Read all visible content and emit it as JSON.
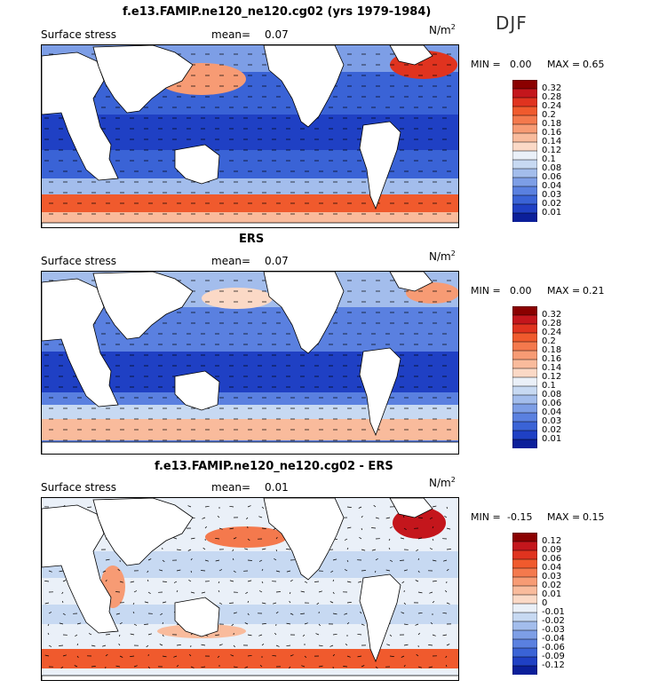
{
  "season": "DJF",
  "panels": [
    {
      "id": "model",
      "title": "f.e13.FAMIP.ne120_ne120.cg02 (yrs 1979-1984)",
      "left_label": "Surface stress",
      "mean_label": "mean=",
      "mean_value": "0.07",
      "units_base": "N/m",
      "units_exp": "2",
      "min_label": "MIN =",
      "min_value": "0.00",
      "max_label": "MAX =",
      "max_value": "0.65"
    },
    {
      "id": "obs",
      "title": "ERS",
      "left_label": "Surface stress",
      "mean_label": "mean=",
      "mean_value": "0.07",
      "units_base": "N/m",
      "units_exp": "2",
      "min_label": "MIN =",
      "min_value": "0.00",
      "max_label": "MAX =",
      "max_value": "0.21"
    },
    {
      "id": "diff",
      "title": "f.e13.FAMIP.ne120_ne120.cg02 - ERS",
      "left_label": "Surface stress",
      "mean_label": "mean=",
      "mean_value": "0.01",
      "units_base": "N/m",
      "units_exp": "2",
      "min_label": "MIN =",
      "min_value": "-0.15",
      "max_label": "MAX =",
      "max_value": "0.15"
    }
  ],
  "colorbars": {
    "abs": {
      "levels": [
        "0.32",
        "0.28",
        "0.24",
        "0.2",
        "0.18",
        "0.16",
        "0.14",
        "0.12",
        "0.1",
        "0.08",
        "0.06",
        "0.04",
        "0.03",
        "0.02",
        "0.01"
      ],
      "colors": [
        "#8b0000",
        "#c4161c",
        "#e0331f",
        "#f05a2d",
        "#f4794d",
        "#f79b74",
        "#f9bb9c",
        "#fbd9c6",
        "#eaf0f8",
        "#c7d9f2",
        "#a3bdec",
        "#7d9ee6",
        "#5a80e0",
        "#3a63d6",
        "#1f40c4",
        "#0b1f9a"
      ]
    },
    "diff": {
      "levels": [
        "0.12",
        "0.09",
        "0.06",
        "0.04",
        "0.03",
        "0.02",
        "0.01",
        "0",
        "-0.01",
        "-0.02",
        "-0.03",
        "-0.04",
        "-0.06",
        "-0.09",
        "-0.12"
      ],
      "colors": [
        "#8b0000",
        "#c4161c",
        "#e0331f",
        "#f05a2d",
        "#f4794d",
        "#f79b74",
        "#f9bb9c",
        "#fbd9c6",
        "#eaf0f8",
        "#c7d9f2",
        "#a3bdec",
        "#7d9ee6",
        "#5a80e0",
        "#3a63d6",
        "#1f40c4",
        "#0b1f9a"
      ]
    }
  },
  "chart_data": [
    {
      "type": "heatmap",
      "title": "f.e13.FAMIP.ne120_ne120.cg02 (yrs 1979-1984)",
      "variable": "Surface stress",
      "units": "N/m2",
      "season": "DJF",
      "mean": 0.07,
      "min": 0.0,
      "max": 0.65,
      "contour_levels": [
        0.01,
        0.02,
        0.03,
        0.04,
        0.06,
        0.08,
        0.1,
        0.12,
        0.14,
        0.16,
        0.18,
        0.2,
        0.24,
        0.28,
        0.32
      ],
      "overlay": "wind stress vectors"
    },
    {
      "type": "heatmap",
      "title": "ERS",
      "variable": "Surface stress",
      "units": "N/m2",
      "mean": 0.07,
      "min": 0.0,
      "max": 0.21,
      "contour_levels": [
        0.01,
        0.02,
        0.03,
        0.04,
        0.06,
        0.08,
        0.1,
        0.12,
        0.14,
        0.16,
        0.18,
        0.2,
        0.24,
        0.28,
        0.32
      ],
      "overlay": "wind stress vectors"
    },
    {
      "type": "heatmap",
      "title": "f.e13.FAMIP.ne120_ne120.cg02 - ERS",
      "variable": "Surface stress",
      "units": "N/m2",
      "mean": 0.01,
      "min": -0.15,
      "max": 0.15,
      "contour_levels": [
        -0.12,
        -0.09,
        -0.06,
        -0.04,
        -0.03,
        -0.02,
        -0.01,
        0,
        0.01,
        0.02,
        0.03,
        0.04,
        0.06,
        0.09,
        0.12
      ],
      "overlay": "wind stress difference vectors"
    }
  ]
}
